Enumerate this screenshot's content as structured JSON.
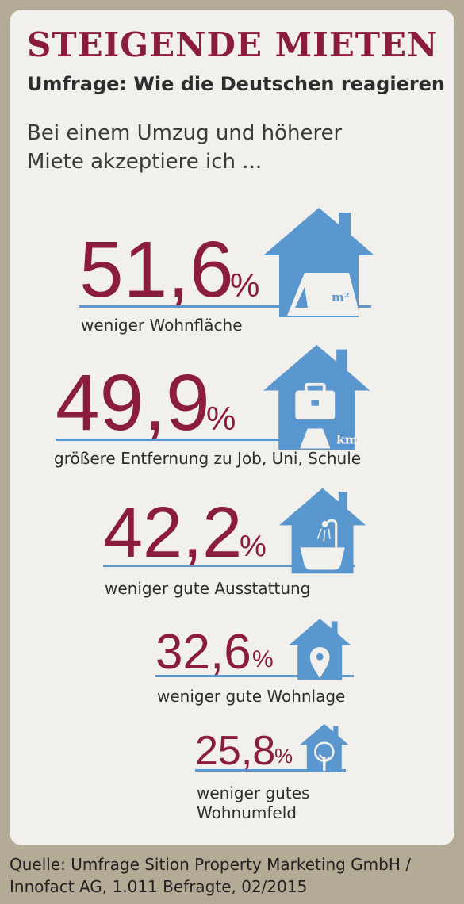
{
  "headline": "STEIGENDE MIETEN",
  "subheadline": "Umfrage: Wie die Deutschen reagieren",
  "intro": "Bei einem Umzug und höherer Miete akzeptiere ich ...",
  "source": "Quelle: Umfrage Sition Property Marketing GmbH / Innofact AG, 1.011 Befragte, 02/2015",
  "colors": {
    "accent": "#8a1d3d",
    "house": "#5b97cf",
    "card": "#f2f0ec",
    "frame": "#b4ab97"
  },
  "chart_data": {
    "type": "bar",
    "title": "STEIGENDE MIETEN",
    "subtitle": "Umfrage: Wie die Deutschen reagieren",
    "unit": "%",
    "categories": [
      "weniger Wohnfläche",
      "größere Entfernung zu Job, Uni, Schule",
      "weniger gute Ausstattung",
      "weniger gute Wohnlage",
      "weniger gutes Wohnumfeld"
    ],
    "values": [
      51.6,
      49.9,
      42.2,
      32.6,
      25.8
    ],
    "value_labels": [
      "51,6",
      "49,9",
      "42,2",
      "32,6",
      "25,8"
    ],
    "percent_sign": "%",
    "icons": [
      "floor-plan-m2-icon",
      "briefcase-km-icon",
      "bathtub-shower-icon",
      "location-pin-icon",
      "tree-icon"
    ],
    "icon_texts": [
      "m²",
      "km"
    ]
  }
}
